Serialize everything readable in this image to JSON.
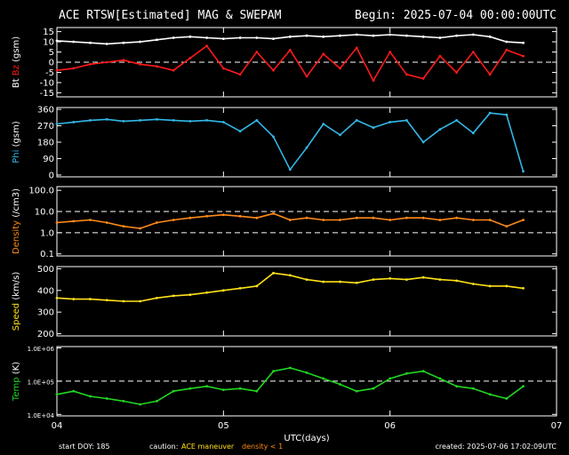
{
  "header": {
    "title": "ACE RTSW[Estimated] MAG & SWEPAM",
    "begin": "Begin: 2025-07-04 00:00:00UTC"
  },
  "footer": {
    "start_doy": "start DOY: 185",
    "caution_label": "caution:",
    "caution_maneuver": "ACE maneuver",
    "caution_density": "density < 1",
    "created": "created: 2025-07-06 17:02:09UTC"
  },
  "colors": {
    "background": "#000000",
    "bt": "#ffffff",
    "bz": "#ff1a1a",
    "phi": "#33b8e8",
    "density": "#ff8a1a",
    "speed": "#ffe21a",
    "temp": "#22d622",
    "maneuver": "#ffe21a",
    "density_caution": "#ff8a1a"
  },
  "chart_data": [
    {
      "type": "scatter",
      "panel": "mag_b",
      "ylabel_parts": [
        {
          "text": "Bt",
          "color": "#ffffff"
        },
        {
          "text": "Bz",
          "color": "#ff1a1a"
        },
        {
          "text": "(gsm)",
          "color": "#ffffff"
        }
      ],
      "yticks": [
        "15",
        "10",
        "5",
        "0",
        "-5",
        "-10",
        "-15"
      ],
      "ytick_values": [
        15,
        10,
        5,
        0,
        -5,
        -10,
        -15
      ],
      "ylim": [
        -17,
        17
      ],
      "scale": "linear",
      "reference_lines": [
        0
      ],
      "series": [
        {
          "name": "Bt",
          "color": "#ffffff",
          "x": [
            0,
            0.1,
            0.2,
            0.3,
            0.4,
            0.5,
            0.6,
            0.7,
            0.8,
            0.9,
            1.0,
            1.1,
            1.2,
            1.3,
            1.4,
            1.5,
            1.6,
            1.7,
            1.8,
            1.9,
            2.0,
            2.1,
            2.2,
            2.3,
            2.4,
            2.5,
            2.6,
            2.7,
            2.8
          ],
          "y": [
            10.5,
            10,
            9.5,
            9,
            9.5,
            10,
            11,
            12,
            12.5,
            12,
            11.5,
            12,
            12,
            11.5,
            12.5,
            13,
            12.5,
            13,
            13.5,
            13,
            13.5,
            13,
            12.5,
            12,
            13,
            13.5,
            12.5,
            10,
            9.5
          ]
        },
        {
          "name": "Bz",
          "color": "#ff1a1a",
          "x": [
            0,
            0.1,
            0.2,
            0.3,
            0.4,
            0.5,
            0.6,
            0.7,
            0.8,
            0.9,
            1.0,
            1.1,
            1.2,
            1.3,
            1.4,
            1.5,
            1.6,
            1.7,
            1.8,
            1.9,
            2.0,
            2.1,
            2.2,
            2.3,
            2.4,
            2.5,
            2.6,
            2.7,
            2.8
          ],
          "y": [
            -4,
            -3,
            -1,
            0,
            1,
            -1,
            -2,
            -4,
            2,
            8,
            -3,
            -6,
            5,
            -4,
            6,
            -7,
            4,
            -3,
            7,
            -9,
            5,
            -6,
            -8,
            3,
            -5,
            5,
            -6,
            6,
            3
          ]
        }
      ]
    },
    {
      "type": "scatter",
      "panel": "mag_phi",
      "ylabel_parts": [
        {
          "text": "Phi",
          "color": "#33b8e8"
        },
        {
          "text": "(gsm)",
          "color": "#ffffff"
        }
      ],
      "yticks": [
        "360",
        "270",
        "180",
        "90",
        "0"
      ],
      "ytick_values": [
        360,
        270,
        180,
        90,
        0
      ],
      "ylim": [
        -10,
        370
      ],
      "scale": "linear",
      "reference_lines": [],
      "series": [
        {
          "name": "Phi",
          "color": "#33b8e8",
          "x": [
            0,
            0.1,
            0.2,
            0.3,
            0.4,
            0.5,
            0.6,
            0.7,
            0.8,
            0.9,
            1.0,
            1.1,
            1.2,
            1.3,
            1.4,
            1.5,
            1.6,
            1.7,
            1.8,
            1.9,
            2.0,
            2.1,
            2.2,
            2.3,
            2.4,
            2.5,
            2.6,
            2.7,
            2.8
          ],
          "y": [
            280,
            290,
            300,
            305,
            295,
            300,
            305,
            300,
            295,
            300,
            290,
            240,
            300,
            210,
            30,
            150,
            280,
            220,
            300,
            260,
            290,
            300,
            180,
            250,
            300,
            230,
            340,
            330,
            20
          ]
        }
      ]
    },
    {
      "type": "scatter",
      "panel": "density",
      "ylabel_parts": [
        {
          "text": "Density",
          "color": "#ff8a1a"
        },
        {
          "text": "(/cm3)",
          "color": "#ffffff"
        }
      ],
      "yticks": [
        "100.0",
        "10.0",
        "1.0",
        "0.1"
      ],
      "ytick_values": [
        100,
        10,
        1,
        0.1
      ],
      "ylim": [
        0.08,
        150
      ],
      "scale": "log",
      "reference_lines": [
        10,
        1
      ],
      "series": [
        {
          "name": "Density",
          "color": "#ff8a1a",
          "x": [
            0,
            0.1,
            0.2,
            0.3,
            0.4,
            0.5,
            0.6,
            0.7,
            0.8,
            0.9,
            1.0,
            1.1,
            1.2,
            1.3,
            1.4,
            1.5,
            1.6,
            1.7,
            1.8,
            1.9,
            2.0,
            2.1,
            2.2,
            2.3,
            2.4,
            2.5,
            2.6,
            2.7,
            2.8
          ],
          "y": [
            3,
            3.5,
            4,
            3,
            2,
            1.6,
            3,
            4,
            5,
            6,
            7,
            6,
            5,
            8,
            4,
            5,
            4,
            4,
            5,
            5,
            4,
            5,
            5,
            4,
            5,
            4,
            4,
            2,
            4
          ]
        }
      ]
    },
    {
      "type": "scatter",
      "panel": "speed",
      "ylabel_parts": [
        {
          "text": "Speed",
          "color": "#ffe21a"
        },
        {
          "text": "(km/s)",
          "color": "#ffffff"
        }
      ],
      "yticks": [
        "500",
        "400",
        "300",
        "200"
      ],
      "ytick_values": [
        500,
        400,
        300,
        200
      ],
      "ylim": [
        190,
        510
      ],
      "scale": "linear",
      "reference_lines": [],
      "series": [
        {
          "name": "Speed",
          "color": "#ffe21a",
          "x": [
            0,
            0.1,
            0.2,
            0.3,
            0.4,
            0.5,
            0.6,
            0.7,
            0.8,
            0.9,
            1.0,
            1.1,
            1.2,
            1.3,
            1.4,
            1.5,
            1.6,
            1.7,
            1.8,
            1.9,
            2.0,
            2.1,
            2.2,
            2.3,
            2.4,
            2.5,
            2.6,
            2.7,
            2.8
          ],
          "y": [
            365,
            360,
            360,
            355,
            350,
            350,
            365,
            375,
            380,
            390,
            400,
            410,
            420,
            480,
            470,
            450,
            440,
            440,
            435,
            450,
            455,
            450,
            460,
            450,
            445,
            430,
            420,
            420,
            410
          ]
        }
      ]
    },
    {
      "type": "scatter",
      "panel": "temp",
      "ylabel_parts": [
        {
          "text": "Temp",
          "color": "#22d622"
        },
        {
          "text": "(K)",
          "color": "#ffffff"
        }
      ],
      "yticks": [
        "1.0E+06",
        "1.0E+05",
        "1.0E+04"
      ],
      "ytick_values": [
        1000000,
        100000,
        10000
      ],
      "ylim": [
        9000,
        1100000
      ],
      "scale": "log",
      "reference_lines": [
        100000
      ],
      "xticks": [
        "04",
        "05",
        "06",
        "07"
      ],
      "xtick_values": [
        0,
        1,
        2,
        3
      ],
      "xlabel": "UTC(days)",
      "series": [
        {
          "name": "Temp",
          "color": "#22d622",
          "x": [
            0,
            0.1,
            0.2,
            0.3,
            0.4,
            0.5,
            0.6,
            0.7,
            0.8,
            0.9,
            1.0,
            1.1,
            1.2,
            1.3,
            1.4,
            1.5,
            1.6,
            1.7,
            1.8,
            1.9,
            2.0,
            2.1,
            2.2,
            2.3,
            2.4,
            2.5,
            2.6,
            2.7,
            2.8
          ],
          "y": [
            40000,
            50000,
            35000,
            30000,
            25000,
            20000,
            25000,
            50000,
            60000,
            70000,
            55000,
            60000,
            50000,
            200000,
            250000,
            180000,
            120000,
            80000,
            50000,
            60000,
            120000,
            170000,
            200000,
            120000,
            70000,
            60000,
            40000,
            30000,
            70000
          ]
        }
      ]
    }
  ]
}
